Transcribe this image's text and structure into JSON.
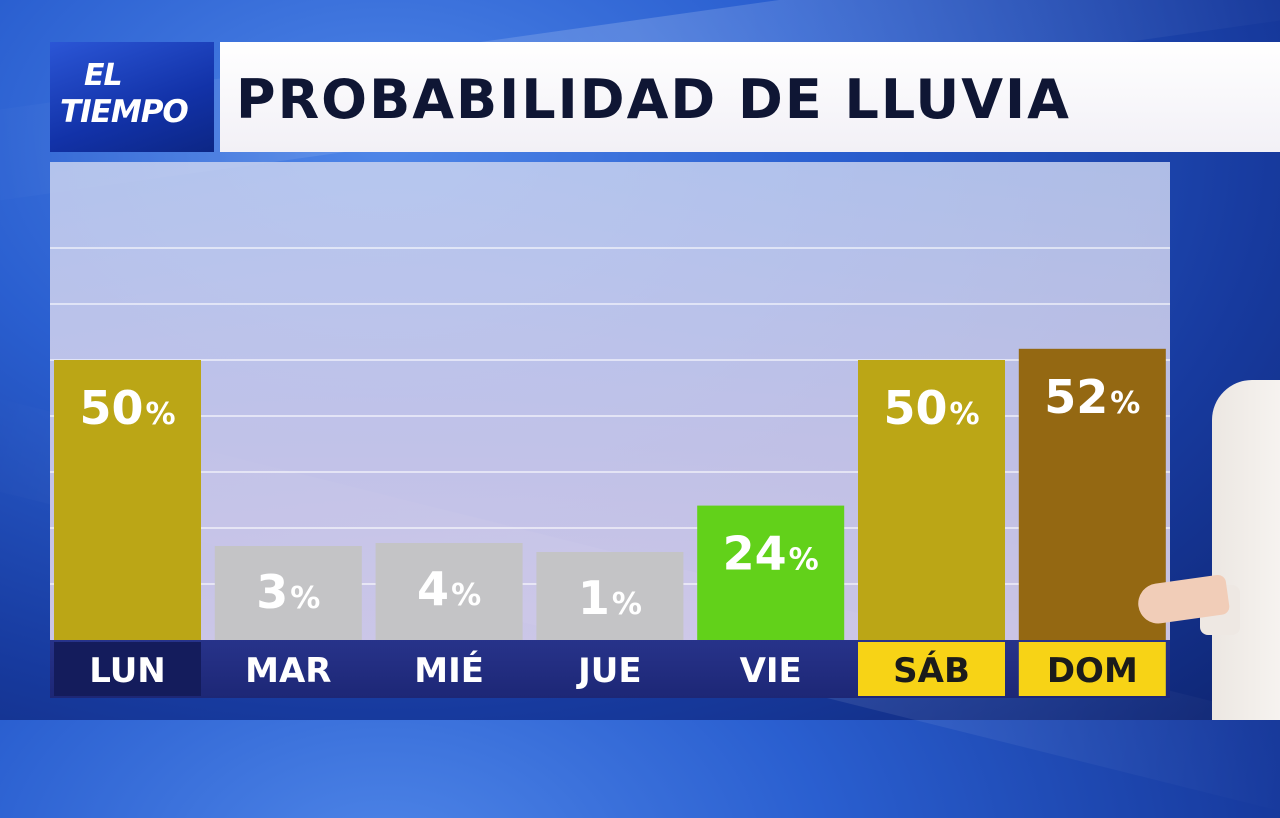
{
  "header": {
    "logo_line1": "EL",
    "logo_line2": "TIEMPO",
    "title": "PROBABILIDAD DE LLUVIA"
  },
  "colors": {
    "yellow_bar": "#bba616",
    "gray_bar": "#c4c4c6",
    "green_bar": "#62d11a",
    "brown_bar": "#946812",
    "weekend_label_bg": "#f7d316",
    "weekday_label_bg": "#1d2776"
  },
  "chart_data": {
    "type": "bar",
    "title": "PROBABILIDAD DE LLUVIA",
    "categories": [
      "LUN",
      "MAR",
      "MIÉ",
      "JUE",
      "VIE",
      "SÁB",
      "DOM"
    ],
    "values": [
      50,
      3,
      4,
      1,
      24,
      50,
      52
    ],
    "value_labels": [
      "50",
      "3",
      "4",
      "1",
      "24",
      "50",
      "52"
    ],
    "unit": "%",
    "bar_colors": [
      "#bba616",
      "#c4c4c6",
      "#c4c4c6",
      "#c4c4c6",
      "#62d11a",
      "#bba616",
      "#946812"
    ],
    "highlighted_categories": [
      "SÁB",
      "DOM"
    ],
    "ylim": [
      0,
      100
    ],
    "grid": true,
    "legend": "none"
  }
}
